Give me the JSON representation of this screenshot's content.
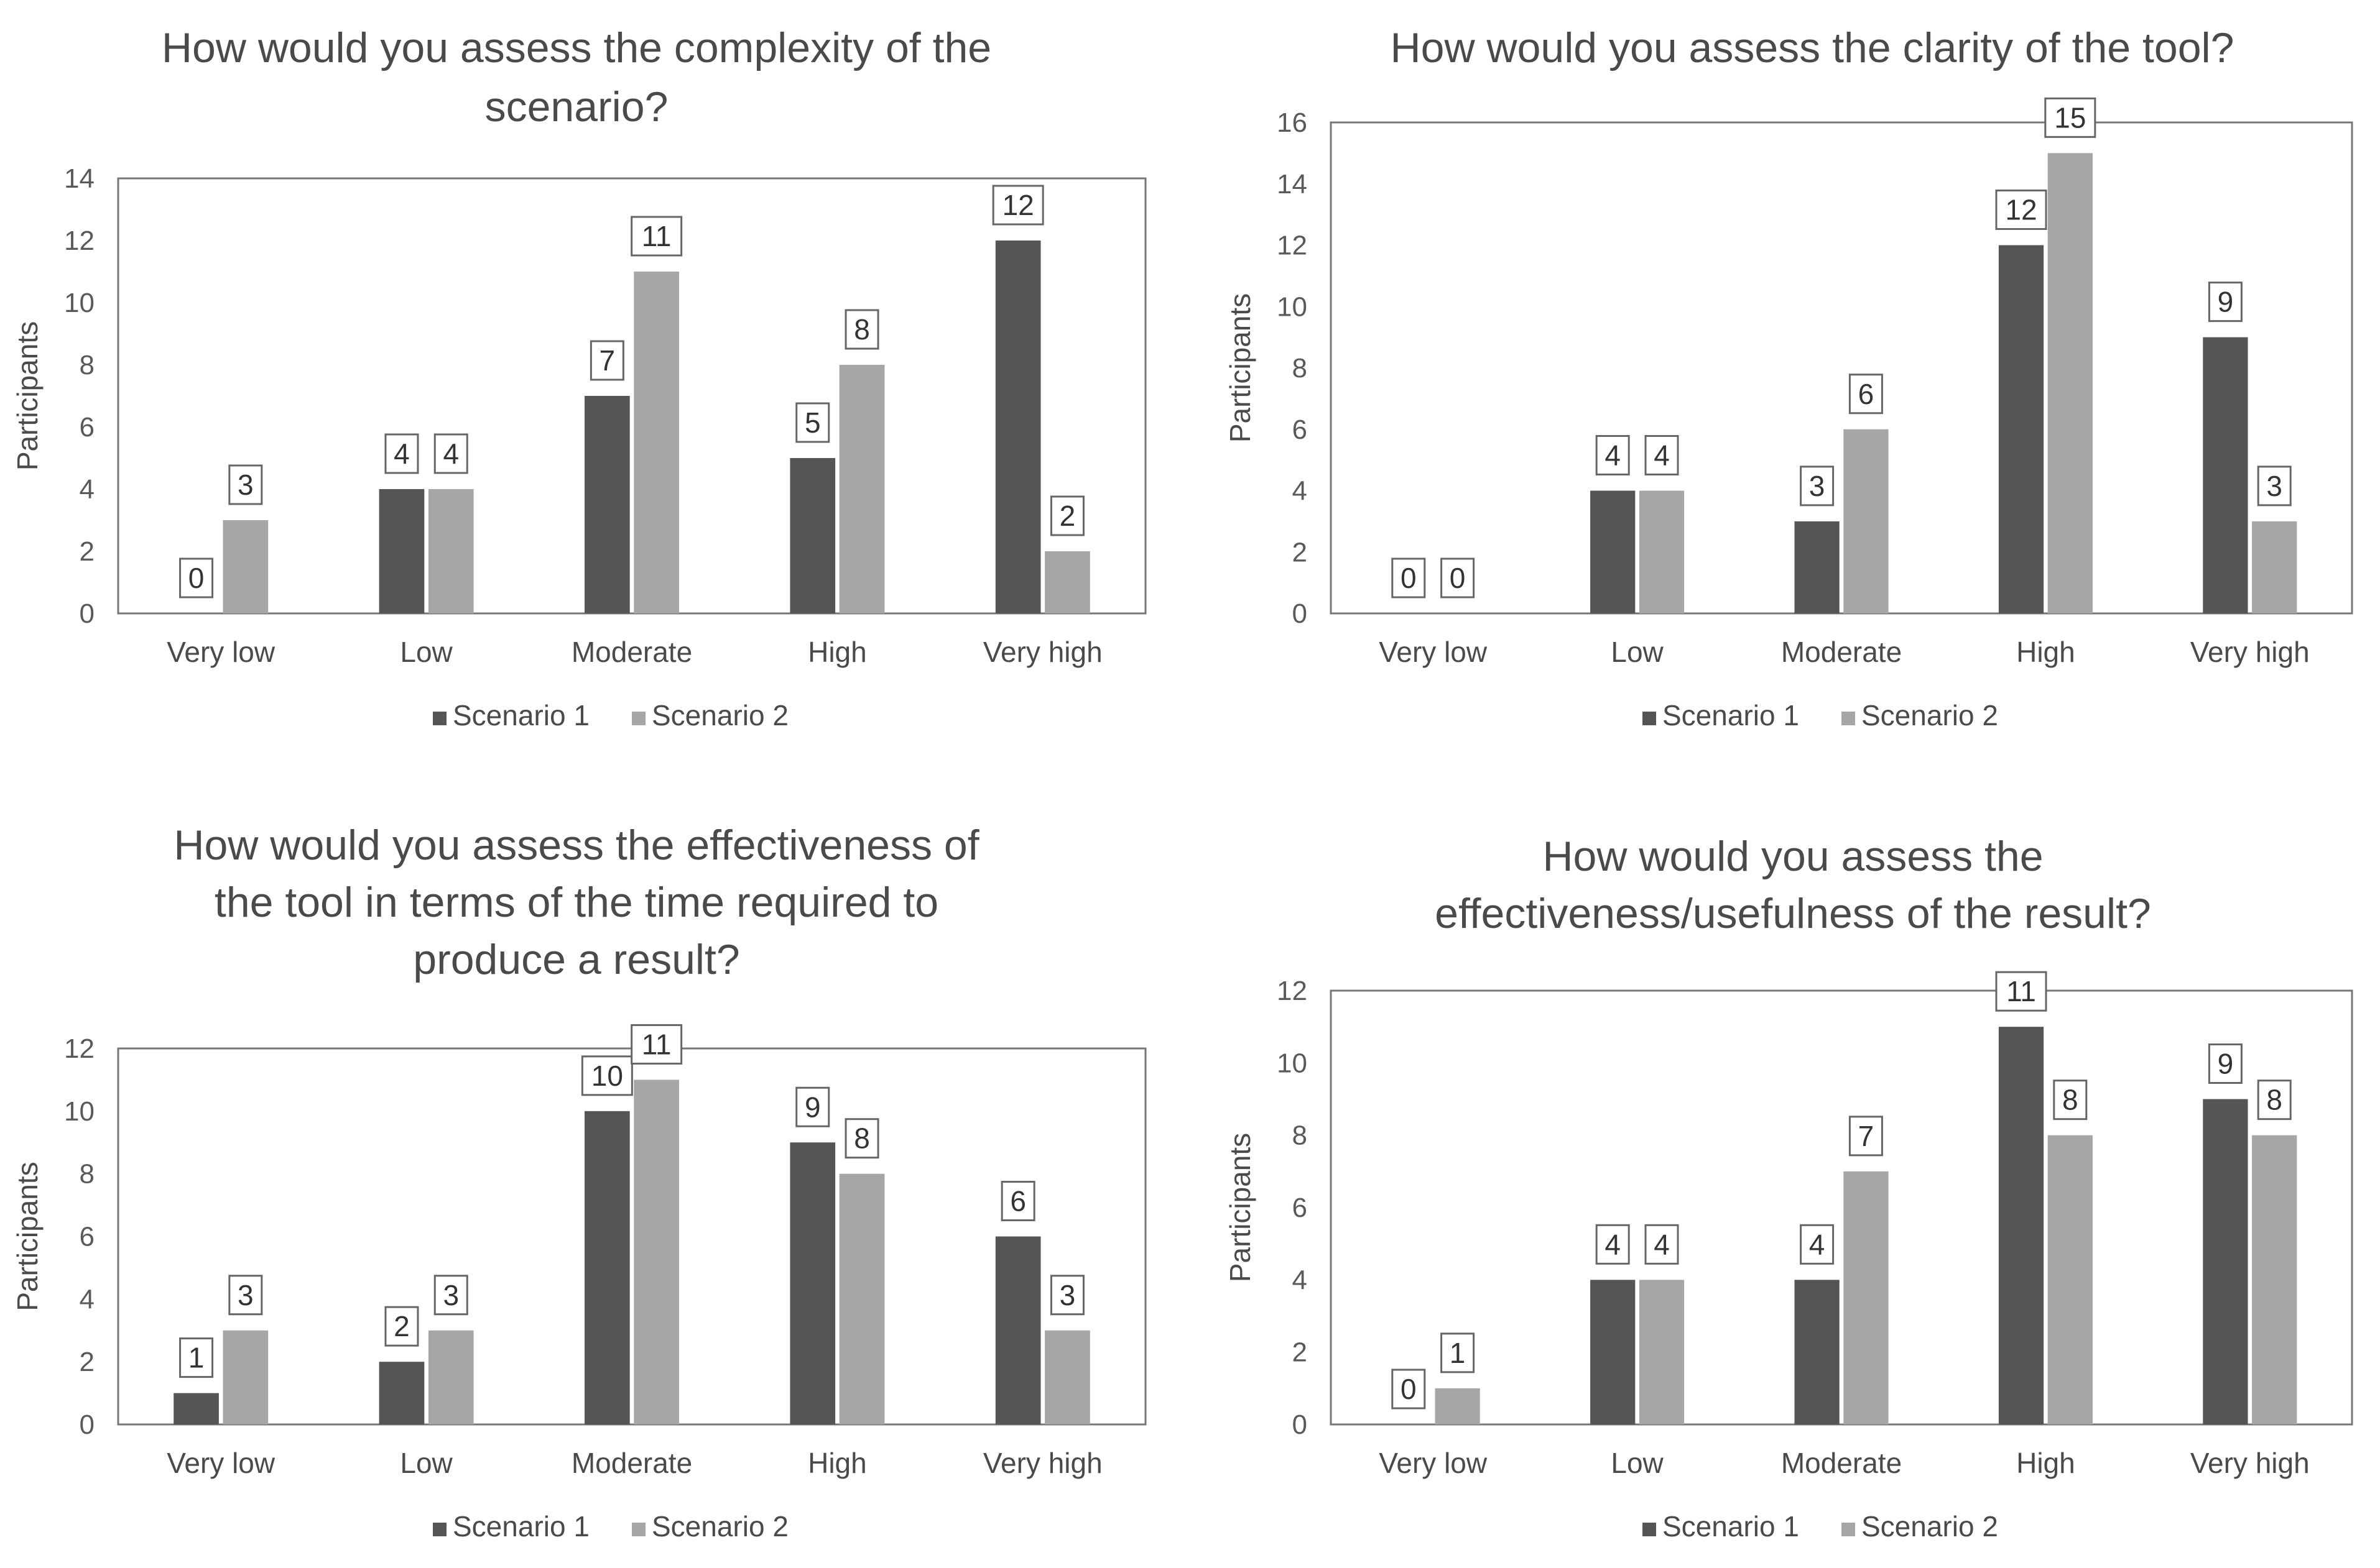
{
  "colors": {
    "scenario1": "#555555",
    "scenario2": "#a6a6a6",
    "axis": "#777777",
    "text": "#4a4a4a"
  },
  "chart_data": [
    {
      "type": "bar",
      "title_lines": [
        "How would you assess the complexity of the",
        "scenario?"
      ],
      "categories": [
        "Very low",
        "Low",
        "Moderate",
        "High",
        "Very high"
      ],
      "series": [
        {
          "name": "Scenario 1",
          "values": [
            0,
            4,
            7,
            5,
            12
          ]
        },
        {
          "name": "Scenario 2",
          "values": [
            3,
            4,
            11,
            8,
            2
          ]
        }
      ],
      "ylabel": "Participants",
      "ylim": [
        0,
        14
      ],
      "yticks": [
        0,
        2,
        4,
        6,
        8,
        10,
        12,
        14
      ],
      "legend": "bottom"
    },
    {
      "type": "bar",
      "title_lines": [
        "How would you assess the clarity of the tool?"
      ],
      "categories": [
        "Very low",
        "Low",
        "Moderate",
        "High",
        "Very high"
      ],
      "series": [
        {
          "name": "Scenario 1",
          "values": [
            0,
            4,
            3,
            12,
            9
          ]
        },
        {
          "name": "Scenario 2",
          "values": [
            0,
            4,
            6,
            15,
            3
          ]
        }
      ],
      "ylabel": "Participants",
      "ylim": [
        0,
        16
      ],
      "yticks": [
        0,
        2,
        4,
        6,
        8,
        10,
        12,
        14,
        16
      ],
      "legend": "bottom"
    },
    {
      "type": "bar",
      "title_lines": [
        "How would you assess the effectiveness of",
        "the tool in terms of the time required to",
        "produce a result?"
      ],
      "categories": [
        "Very low",
        "Low",
        "Moderate",
        "High",
        "Very high"
      ],
      "series": [
        {
          "name": "Scenario 1",
          "values": [
            1,
            2,
            10,
            9,
            6
          ]
        },
        {
          "name": "Scenario 2",
          "values": [
            3,
            3,
            11,
            8,
            3
          ]
        }
      ],
      "ylabel": "Participants",
      "ylim": [
        0,
        12
      ],
      "yticks": [
        0,
        2,
        4,
        6,
        8,
        10,
        12
      ],
      "legend": "bottom"
    },
    {
      "type": "bar",
      "title_lines": [
        "How would you assess the",
        "effectiveness/usefulness of the result?"
      ],
      "categories": [
        "Very low",
        "Low",
        "Moderate",
        "High",
        "Very high"
      ],
      "series": [
        {
          "name": "Scenario 1",
          "values": [
            0,
            4,
            4,
            11,
            9
          ]
        },
        {
          "name": "Scenario 2",
          "values": [
            1,
            4,
            7,
            8,
            8
          ]
        }
      ],
      "ylabel": "Participants",
      "ylim": [
        0,
        12
      ],
      "yticks": [
        0,
        2,
        4,
        6,
        8,
        10,
        12
      ],
      "legend": "bottom"
    }
  ]
}
